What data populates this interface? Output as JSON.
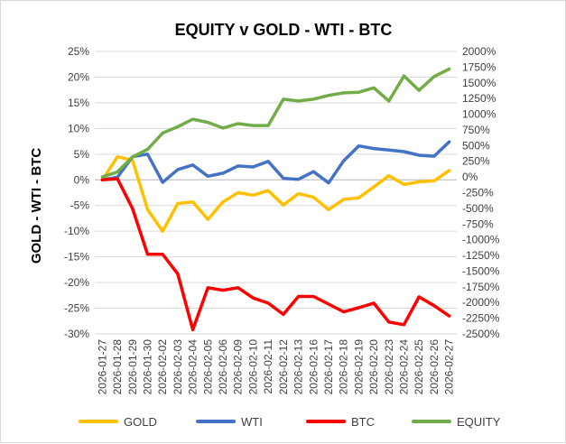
{
  "chart_data": {
    "type": "line",
    "title": "EQUITY  v  GOLD - WTI - BTC",
    "ylabel": "GOLD - WTI - BTC",
    "y2label": "",
    "x": [
      "2026-01-27",
      "2026-01-28",
      "2026-01-29",
      "2026-01-30",
      "2026-02-02",
      "2026-02-03",
      "2026-02-04",
      "2026-02-05",
      "2026-02-06",
      "2026-02-09",
      "2026-02-10",
      "2026-02-11",
      "2026-02-12",
      "2026-02-13",
      "2026-02-16",
      "2026-02-17",
      "2026-02-18",
      "2026-02-19",
      "2026-02-20",
      "2026-02-23",
      "2026-02-24",
      "2026-02-25",
      "2026-02-26",
      "2026-02-27"
    ],
    "left_axis": {
      "min": -30,
      "max": 25,
      "step": 5,
      "ticks": [
        "25%",
        "20%",
        "15%",
        "10%",
        "5%",
        "0%",
        "-5%",
        "-10%",
        "-15%",
        "-20%",
        "-25%",
        "-30%"
      ]
    },
    "right_axis": {
      "min": -2500,
      "max": 2000,
      "step": 250,
      "ticks": [
        "2000%",
        "1750%",
        "1500%",
        "1250%",
        "1000%",
        "750%",
        "500%",
        "250%",
        "0%",
        "-250%",
        "-500%",
        "-750%",
        "-1000%",
        "-1250%",
        "-1500%",
        "-1750%",
        "-2000%",
        "-2250%",
        "-2500%"
      ]
    },
    "grid": true,
    "legend_position": "bottom",
    "series": [
      {
        "name": "GOLD",
        "color": "#ffc000",
        "axis": "left",
        "values": [
          0,
          4.5,
          3.8,
          -5.8,
          -10.0,
          -4.6,
          -4.3,
          -7.7,
          -4.3,
          -2.5,
          -3.0,
          -2.1,
          -4.9,
          -2.7,
          -3.4,
          -5.8,
          -3.8,
          -3.5,
          -1.4,
          0.8,
          -0.9,
          -0.4,
          -0.2,
          1.8
        ]
      },
      {
        "name": "WTI",
        "color": "#4472c4",
        "axis": "left",
        "values": [
          0,
          0.5,
          4.5,
          5.0,
          -0.5,
          2.0,
          2.9,
          0.7,
          1.3,
          2.7,
          2.5,
          3.6,
          0.3,
          0.1,
          1.6,
          -0.6,
          3.7,
          6.6,
          6.1,
          5.8,
          5.5,
          4.8,
          4.6,
          7.4
        ]
      },
      {
        "name": "BTC",
        "color": "#ff0000",
        "axis": "left",
        "values": [
          0,
          0.2,
          -5.6,
          -14.5,
          -14.5,
          -18.3,
          -29.2,
          -21.0,
          -21.5,
          -21.0,
          -23.0,
          -24.0,
          -26.2,
          -22.7,
          -22.7,
          -24.2,
          -25.7,
          -24.9,
          -24.0,
          -27.7,
          -28.2,
          -22.8,
          -24.5,
          -26.5
        ]
      },
      {
        "name": "EQUITY",
        "color": "#70ad47",
        "axis": "right",
        "values": [
          0,
          80,
          320,
          440,
          700,
          800,
          920,
          870,
          780,
          850,
          820,
          820,
          1240,
          1210,
          1240,
          1300,
          1340,
          1350,
          1420,
          1210,
          1610,
          1380,
          1600,
          1720
        ]
      }
    ]
  }
}
